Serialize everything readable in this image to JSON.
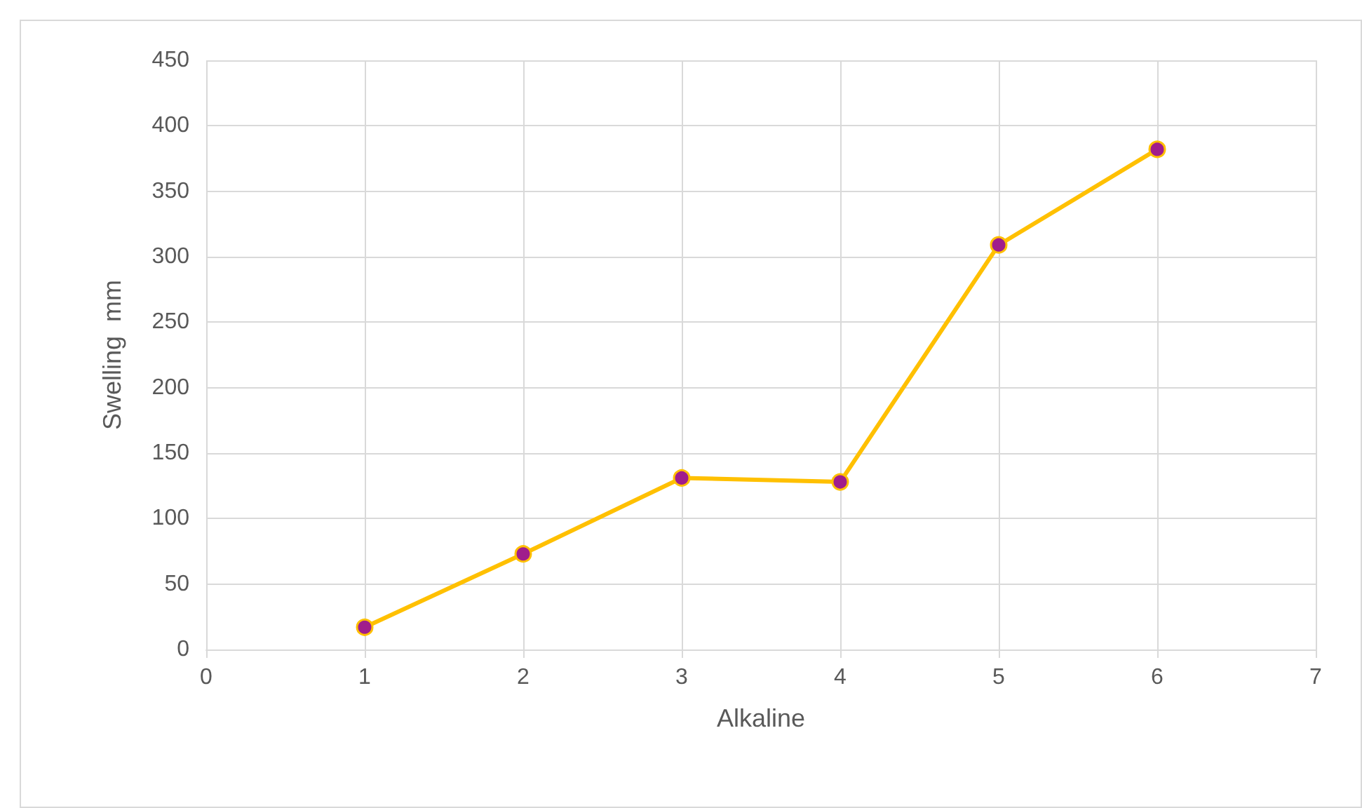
{
  "chart_data": {
    "type": "line",
    "xlabel": "Alkaline",
    "ylabel": "Swelling  mm",
    "x": [
      1,
      2,
      3,
      4,
      5,
      6
    ],
    "series": [
      {
        "color": "#ffc000",
        "colors": [
          "#a01d8c",
          "#a01d8c",
          "#a01d8c",
          "#a01d8c",
          "#a01d8c",
          "#a01d8c"
        ],
        "values": [
          17,
          73,
          131,
          128,
          309,
          382
        ]
      }
    ],
    "xlim": [
      0,
      7
    ],
    "xticks": [
      0,
      1,
      2,
      3,
      4,
      5,
      6,
      7
    ],
    "ylim": [
      0,
      450
    ],
    "yticks": [
      0,
      50,
      100,
      150,
      200,
      250,
      300,
      350,
      400,
      450
    ],
    "grid": true,
    "marker": "circle",
    "line_style": "solid"
  }
}
